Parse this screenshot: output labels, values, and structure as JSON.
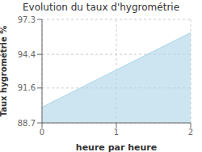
{
  "chart_data": {
    "type": "area",
    "title": "Evolution du taux d'hygrométrie",
    "xlabel": "heure par heure",
    "ylabel": "Taux hygrométrie %",
    "x": [
      0,
      2
    ],
    "values": [
      90.0,
      96.2
    ],
    "xlim": [
      0,
      2
    ],
    "ylim": [
      88.7,
      97.3
    ],
    "xticks": [
      0,
      1,
      2
    ],
    "yticks": [
      88.7,
      91.6,
      94.4,
      97.3
    ],
    "color": "#aad4e8",
    "grid": true
  }
}
